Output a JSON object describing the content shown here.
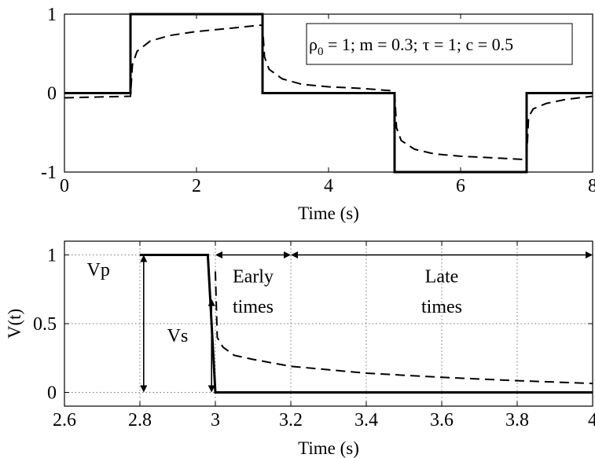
{
  "chart_data": [
    {
      "type": "line",
      "xlabel": "Time (s)",
      "ylabel": "",
      "xlim": [
        0,
        8
      ],
      "ylim": [
        -1,
        1
      ],
      "xticks": [
        "0",
        "2",
        "4",
        "6",
        "8"
      ],
      "yticks": [
        "-1",
        "0",
        "1"
      ],
      "grid": false,
      "legend_box": {
        "rho_symbol": "ρ",
        "rho_subscript": "0",
        "after_rho": " = 1; m = 0.3;",
        "tau_symbol": "τ",
        "after_tau": " = 1; c = 0.5",
        "placement": "top-right"
      },
      "series": [
        {
          "style": "solid",
          "x": [
            0,
            1,
            1,
            3,
            3,
            5,
            5,
            7,
            7,
            8
          ],
          "y": [
            0,
            0,
            1,
            1,
            0,
            0,
            -1,
            -1,
            0,
            0
          ]
        },
        {
          "style": "dashed",
          "x": [
            0,
            1,
            1.03,
            1.1,
            1.3,
            1.6,
            2.0,
            2.5,
            2.95,
            3,
            3.03,
            3.1,
            3.3,
            3.6,
            4.0,
            4.5,
            4.95,
            5,
            5.03,
            5.1,
            5.3,
            5.6,
            6.0,
            6.5,
            6.95,
            7,
            7.03,
            7.1,
            7.3,
            7.6,
            8.0
          ],
          "y": [
            -0.06,
            -0.04,
            0.36,
            0.53,
            0.66,
            0.73,
            0.78,
            0.82,
            0.86,
            0.86,
            0.46,
            0.3,
            0.18,
            0.11,
            0.08,
            0.06,
            0.03,
            0.03,
            -0.44,
            -0.6,
            -0.71,
            -0.77,
            -0.8,
            -0.82,
            -0.84,
            -0.84,
            -0.3,
            -0.2,
            -0.13,
            -0.08,
            -0.04
          ]
        }
      ]
    },
    {
      "type": "line",
      "xlabel": "Time (s)",
      "ylabel": "V(t)",
      "xlim": [
        2.6,
        4
      ],
      "ylim": [
        -0.1,
        1.1
      ],
      "xticks": [
        "2.6",
        "2.8",
        "3",
        "3.2",
        "3.4",
        "3.6",
        "3.8",
        "4"
      ],
      "yticks": [
        "0",
        "0.5",
        "1"
      ],
      "grid": true,
      "series": [
        {
          "style": "solid",
          "x": [
            2.8,
            2.98,
            3.0,
            4.0
          ],
          "y": [
            1,
            1,
            0,
            0
          ]
        },
        {
          "style": "dashed",
          "x": [
            3.0,
            3.005,
            3.02,
            3.05,
            3.1,
            3.2,
            3.4,
            3.6,
            3.8,
            4.0
          ],
          "y": [
            0.88,
            0.4,
            0.33,
            0.27,
            0.24,
            0.19,
            0.14,
            0.11,
            0.085,
            0.065
          ]
        }
      ],
      "annotations": {
        "vp": {
          "label": "Vp",
          "x": 2.81,
          "y_from": 0,
          "y_to": 1,
          "label_x": 2.69,
          "label_y": 0.85
        },
        "vs": {
          "label": "Vs",
          "x": 2.99,
          "y_from": 0,
          "y_to": 0.68,
          "label_x": 2.9,
          "label_y": 0.37
        },
        "early_times": {
          "line1": "Early",
          "line2": "times",
          "x_from": 3.0,
          "x_to": 3.2,
          "y": 1,
          "label_x": 3.1,
          "label_y1": 0.8,
          "label_y2": 0.58
        },
        "late_times": {
          "line1": "Late",
          "line2": "times",
          "x_from": 3.2,
          "x_to": 4.0,
          "y": 1,
          "label_x": 3.6,
          "label_y1": 0.8,
          "label_y2": 0.58
        }
      }
    }
  ]
}
